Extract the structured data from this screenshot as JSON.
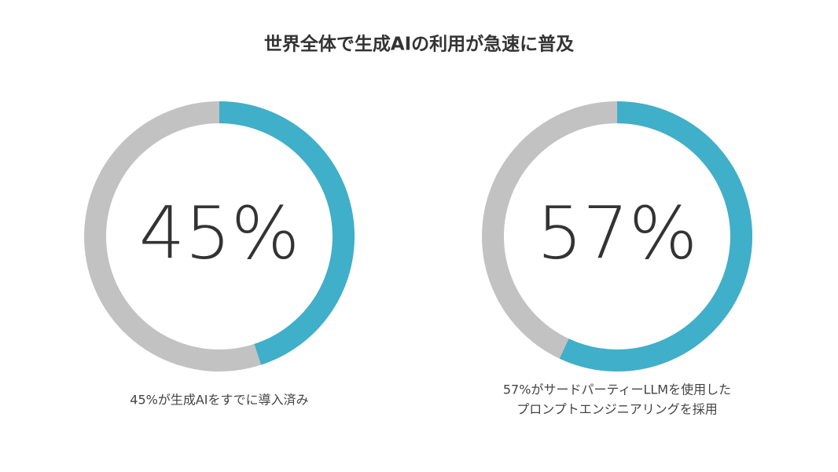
{
  "title": "世界全体で生成AIの利用が急速に普及",
  "chart_data": [
    {
      "type": "donut",
      "values": [
        45
      ],
      "value_labels": [
        "45%"
      ],
      "ylim": [
        0,
        100
      ],
      "caption": [
        "45%が生成AIをすでに導入済み"
      ],
      "color": "#40afc9",
      "track_color": "#c2c2c2"
    },
    {
      "type": "donut",
      "values": [
        57
      ],
      "value_labels": [
        "57%"
      ],
      "ylim": [
        0,
        100
      ],
      "caption": [
        "57%がサードパーティーLLMを使用した",
        "プロンプトエンジニアリングを採用"
      ],
      "color": "#40afc9",
      "track_color": "#c2c2c2"
    }
  ]
}
